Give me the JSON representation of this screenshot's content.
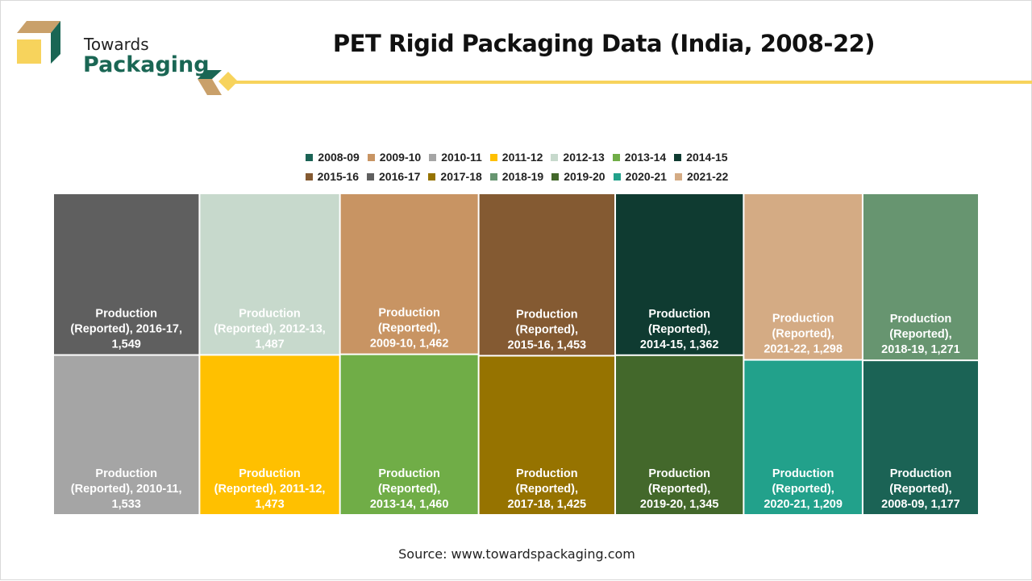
{
  "brand": {
    "line1": "Towards",
    "line2": "Packaging",
    "colors": {
      "green": "#1a6654",
      "tan": "#c9a06a",
      "yellow": "#f7d35c"
    }
  },
  "title": "PET Rigid Packaging Data (India, 2008-22)",
  "source": "Source: www.towardspackaging.com",
  "chart_data": {
    "type": "treemap",
    "title": "PET Rigid Packaging Data (India, 2008-22)",
    "series_name": "Production (Reported)",
    "legend_position": "top",
    "legend": [
      {
        "label": "2008-09",
        "color": "#1b6355"
      },
      {
        "label": "2009-10",
        "color": "#c89463"
      },
      {
        "label": "2010-11",
        "color": "#a5a5a5"
      },
      {
        "label": "2011-12",
        "color": "#ffc000"
      },
      {
        "label": "2012-13",
        "color": "#c7d9cc"
      },
      {
        "label": "2013-14",
        "color": "#70ad47"
      },
      {
        "label": "2014-15",
        "color": "#0f3b31"
      },
      {
        "label": "2015-16",
        "color": "#845a32"
      },
      {
        "label": "2016-17",
        "color": "#5f5f5f"
      },
      {
        "label": "2017-18",
        "color": "#967300"
      },
      {
        "label": "2018-19",
        "color": "#679570"
      },
      {
        "label": "2019-20",
        "color": "#43682b"
      },
      {
        "label": "2020-21",
        "color": "#22a18b"
      },
      {
        "label": "2021-22",
        "color": "#d4ab84"
      }
    ],
    "items": [
      {
        "year": "2016-17",
        "value": 1549,
        "label": "Production (Reported), 2016-17, 1,549",
        "color": "#5f5f5f"
      },
      {
        "year": "2010-11",
        "value": 1533,
        "label": "Production (Reported), 2010-11, 1,533",
        "color": "#a5a5a5"
      },
      {
        "year": "2012-13",
        "value": 1487,
        "label": "Production (Reported), 2012-13, 1,487",
        "color": "#c7d9cc"
      },
      {
        "year": "2011-12",
        "value": 1473,
        "label": "Production (Reported), 2011-12, 1,473",
        "color": "#ffc000"
      },
      {
        "year": "2009-10",
        "value": 1462,
        "label": "Production (Reported), 2009-10, 1,462",
        "color": "#c89463"
      },
      {
        "year": "2013-14",
        "value": 1460,
        "label": "Production (Reported), 2013-14, 1,460",
        "color": "#70ad47"
      },
      {
        "year": "2015-16",
        "value": 1453,
        "label": "Production (Reported), 2015-16, 1,453",
        "color": "#845a32"
      },
      {
        "year": "2017-18",
        "value": 1425,
        "label": "Production (Reported), 2017-18, 1,425",
        "color": "#967300"
      },
      {
        "year": "2014-15",
        "value": 1362,
        "label": "Production (Reported), 2014-15, 1,362",
        "color": "#0f3b31"
      },
      {
        "year": "2019-20",
        "value": 1345,
        "label": "Production (Reported), 2019-20, 1,345",
        "color": "#43682b"
      },
      {
        "year": "2021-22",
        "value": 1298,
        "label": "Production (Reported), 2021-22, 1,298",
        "color": "#d4ab84"
      },
      {
        "year": "2020-21",
        "value": 1209,
        "label": "Production (Reported), 2020-21, 1,209",
        "color": "#22a18b"
      },
      {
        "year": "2018-19",
        "value": 1271,
        "label": "Production (Reported), 2018-19, 1,271",
        "color": "#679570"
      },
      {
        "year": "2008-09",
        "value": 1177,
        "label": "Production (Reported), 2008-09, 1,177",
        "color": "#1b6355"
      }
    ]
  }
}
